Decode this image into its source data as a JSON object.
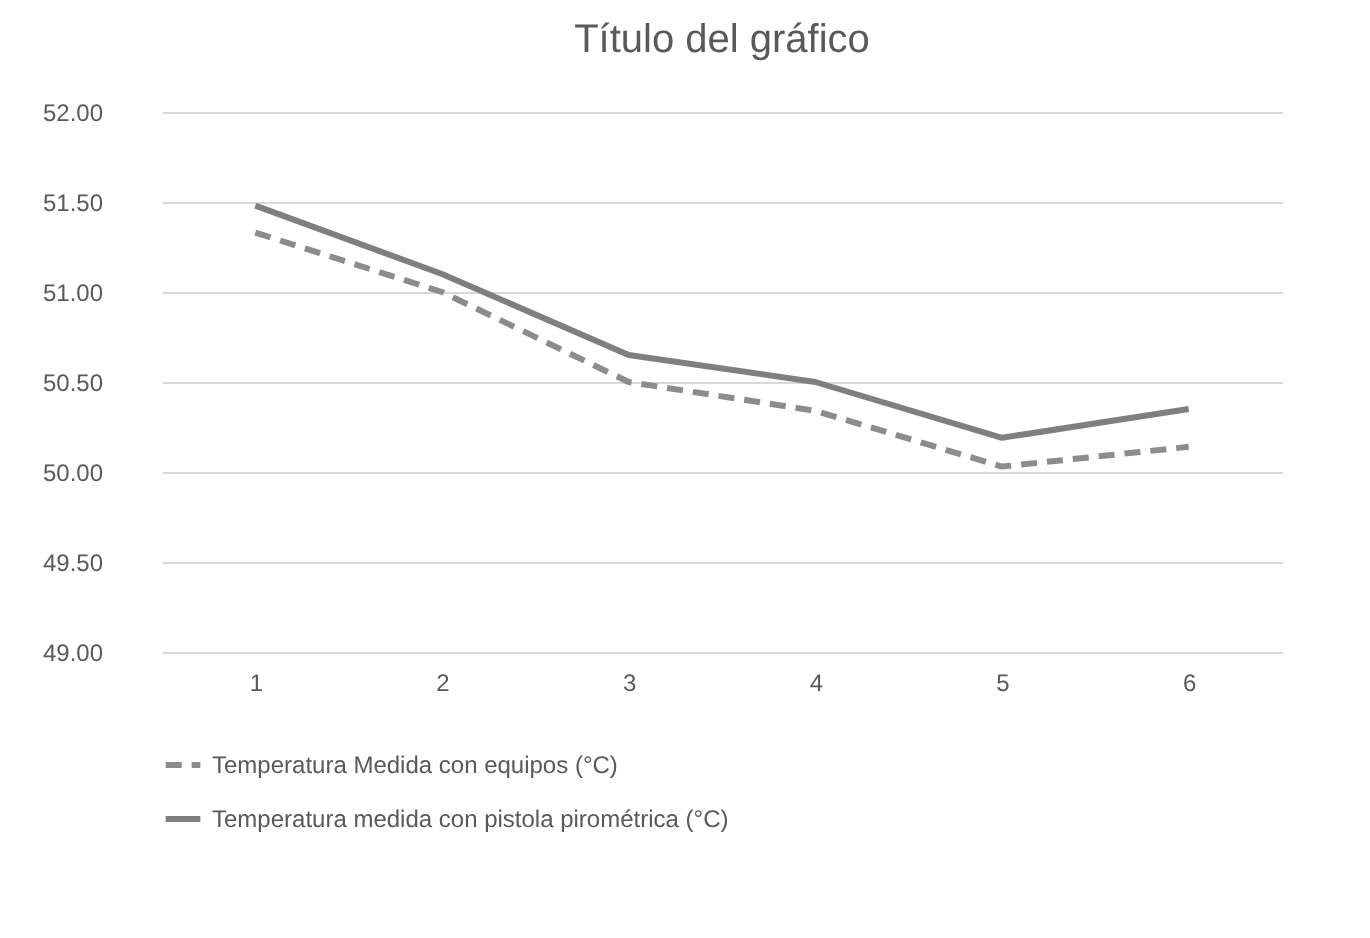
{
  "chart_data": {
    "type": "line",
    "title": "Título del gráfico",
    "categories": [
      "1",
      "2",
      "3",
      "4",
      "5",
      "6"
    ],
    "series": [
      {
        "name": "Temperatura Medida con equipos (°C)",
        "color": "#8c8c8c",
        "line_style": "dashed",
        "values": [
          51.33,
          51.0,
          50.5,
          50.34,
          50.03,
          50.14
        ]
      },
      {
        "name": "Temperatura medida con pistola pirométrica (°C)",
        "color": "#7f7f7f",
        "line_style": "solid",
        "values": [
          51.48,
          51.1,
          50.65,
          50.5,
          50.19,
          50.35
        ]
      }
    ],
    "ylim": [
      49,
      52
    ],
    "yticks": [
      {
        "value": 49,
        "label": "49.00"
      },
      {
        "value": 49.5,
        "label": "49.50"
      },
      {
        "value": 50,
        "label": "50.00"
      },
      {
        "value": 50.5,
        "label": "50.50"
      },
      {
        "value": 51,
        "label": "51.00"
      },
      {
        "value": 51.5,
        "label": "51.50"
      },
      {
        "value": 52,
        "label": "52.00"
      }
    ],
    "grid": "y",
    "legend": "bottom",
    "marker": "none"
  }
}
